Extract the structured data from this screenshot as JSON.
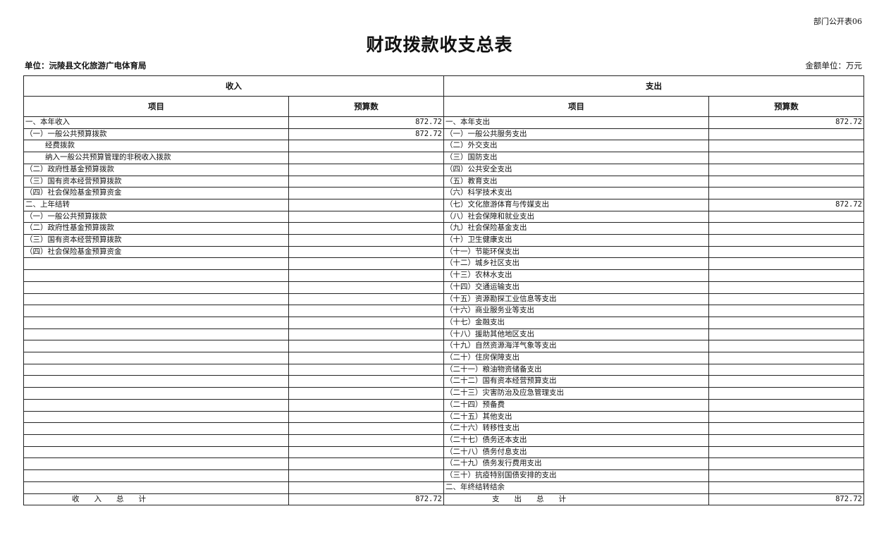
{
  "form_code": "部门公开表06",
  "title": "财政拨款收支总表",
  "unit_label": "单位：沅陵县文化旅游广电体育局",
  "money_unit": "金额单位：万元",
  "headers": {
    "income": "收入",
    "expense": "支出",
    "item": "项目",
    "budget": "预算数"
  },
  "rows": [
    {
      "li": "一、本年收入",
      "la": "872.72",
      "ri": "一、本年支出",
      "ra": "872.72"
    },
    {
      "li": "（一）一般公共预算拨款",
      "la": "872.72",
      "ri": "（一）一般公共服务支出",
      "ra": ""
    },
    {
      "li": "经费拨款",
      "la": "",
      "ri": "（二）外交支出",
      "ra": "",
      "indent": true
    },
    {
      "li": "纳入一般公共预算管理的非税收入拨款",
      "la": "",
      "ri": "（三）国防支出",
      "ra": "",
      "indent": true
    },
    {
      "li": "（二）政府性基金预算拨款",
      "la": "",
      "ri": "（四）公共安全支出",
      "ra": ""
    },
    {
      "li": "（三）国有资本经营预算拨款",
      "la": "",
      "ri": "（五）教育支出",
      "ra": ""
    },
    {
      "li": "（四）社会保险基金预算资金",
      "la": "",
      "ri": "（六）科学技术支出",
      "ra": ""
    },
    {
      "li": "二、上年结转",
      "la": "",
      "ri": "（七）文化旅游体育与传媒支出",
      "ra": "872.72"
    },
    {
      "li": "（一）一般公共预算拨款",
      "la": "",
      "ri": "（八）社会保障和就业支出",
      "ra": ""
    },
    {
      "li": "（二）政府性基金预算拨款",
      "la": "",
      "ri": "（九）社会保险基金支出",
      "ra": ""
    },
    {
      "li": "（三）国有资本经营预算拨款",
      "la": "",
      "ri": "（十）卫生健康支出",
      "ra": ""
    },
    {
      "li": "（四）社会保险基金预算资金",
      "la": "",
      "ri": "（十一）节能环保支出",
      "ra": ""
    },
    {
      "li": "",
      "la": "",
      "ri": "（十二）城乡社区支出",
      "ra": ""
    },
    {
      "li": "",
      "la": "",
      "ri": "（十三）农林水支出",
      "ra": ""
    },
    {
      "li": "",
      "la": "",
      "ri": "（十四）交通运输支出",
      "ra": ""
    },
    {
      "li": "",
      "la": "",
      "ri": "（十五）资源勘探工业信息等支出",
      "ra": ""
    },
    {
      "li": "",
      "la": "",
      "ri": "（十六）商业服务业等支出",
      "ra": ""
    },
    {
      "li": "",
      "la": "",
      "ri": "（十七）金融支出",
      "ra": ""
    },
    {
      "li": "",
      "la": "",
      "ri": "（十八）援助其他地区支出",
      "ra": ""
    },
    {
      "li": "",
      "la": "",
      "ri": "（十九）自然资源海洋气象等支出",
      "ra": ""
    },
    {
      "li": "",
      "la": "",
      "ri": "（二十）住房保障支出",
      "ra": ""
    },
    {
      "li": "",
      "la": "",
      "ri": "（二十一）粮油物资储备支出",
      "ra": ""
    },
    {
      "li": "",
      "la": "",
      "ri": "（二十二）国有资本经营预算支出",
      "ra": ""
    },
    {
      "li": "",
      "la": "",
      "ri": "（二十三）灾害防治及应急管理支出",
      "ra": ""
    },
    {
      "li": "",
      "la": "",
      "ri": "（二十四）预备费",
      "ra": ""
    },
    {
      "li": "",
      "la": "",
      "ri": "（二十五）其他支出",
      "ra": ""
    },
    {
      "li": "",
      "la": "",
      "ri": "（二十六）转移性支出",
      "ra": ""
    },
    {
      "li": "",
      "la": "",
      "ri": "（二十七）债务还本支出",
      "ra": ""
    },
    {
      "li": "",
      "la": "",
      "ri": "（二十八）债务付息支出",
      "ra": ""
    },
    {
      "li": "",
      "la": "",
      "ri": "（二十九）债务发行费用支出",
      "ra": ""
    },
    {
      "li": "",
      "la": "",
      "ri": "（三十）抗疫特别国债安排的支出",
      "ra": ""
    },
    {
      "li": "",
      "la": "",
      "ri": "二、年终结转结余",
      "ra": ""
    }
  ],
  "totals": {
    "income_label": "收　　入　　总　　计",
    "income_amount": "872.72",
    "expense_label": "支　　出　　总　　计",
    "expense_amount": "872.72"
  }
}
